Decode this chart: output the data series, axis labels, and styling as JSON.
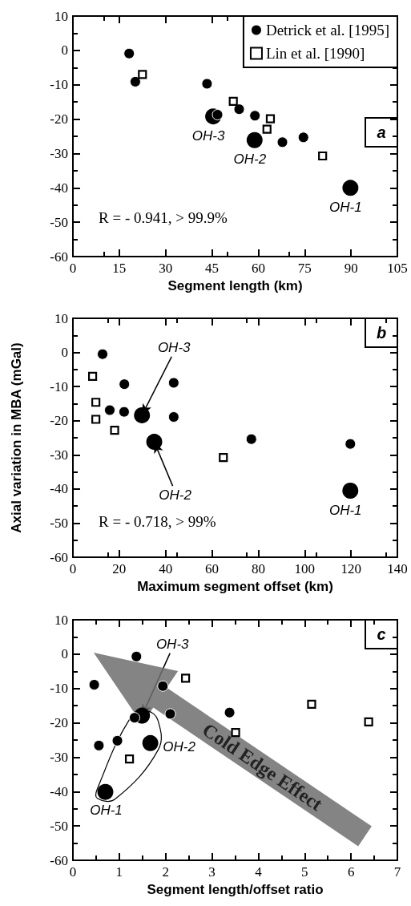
{
  "chart_data": [
    {
      "type": "scatter",
      "xlabel": "Segment length (km)",
      "xlim": [
        0,
        105
      ],
      "xticks": [
        0,
        15,
        30,
        45,
        60,
        75,
        90,
        105
      ],
      "ylim": [
        -60,
        10
      ],
      "yticks": [
        -60,
        -50,
        -40,
        -30,
        -20,
        -10,
        0,
        10
      ],
      "legend": "top right",
      "grid": false,
      "series": [
        {
          "name": "Detrick et al. [1995]",
          "color": "#000000",
          "marker": "circle",
          "x": [
            18.2,
            20.2,
            43.4,
            46.8,
            53.8,
            58.9,
            67.8,
            74.6
          ],
          "values": [
            -0.9,
            -9.1,
            -9.7,
            -18.7,
            -17.1,
            -19,
            -26.7,
            -25.3
          ]
        },
        {
          "name": "Lin et al. [1990]",
          "color": "#000000",
          "marker": "square",
          "x": [
            22.5,
            51.9,
            63.9,
            62.8,
            80.8
          ],
          "values": [
            -7,
            -14.8,
            -19.9,
            -22.9,
            -30.7
          ]
        },
        {
          "color": "#000000",
          "marker": "circle",
          "x": [
            45.4,
            58.8,
            89.8
          ],
          "values": [
            -19.2,
            -26.1,
            -40
          ]
        }
      ],
      "annotations": [
        "a",
        "R = - 0.941, > 99.9%",
        {
          "text": "OH-3",
          "x": 45.4,
          "y": -19.2
        },
        {
          "text": "OH-2",
          "x": 58.8,
          "y": -26.1
        },
        {
          "text": "OH-1",
          "x": 89.8,
          "y": -40
        }
      ]
    },
    {
      "type": "scatter",
      "xlabel": "Maximum segment offset (km)",
      "ylabel": "Axial variation in MBA (mGal)",
      "xlim": [
        0,
        140
      ],
      "xticks": [
        0,
        20,
        40,
        60,
        80,
        100,
        120,
        140
      ],
      "ylim": [
        -60,
        10
      ],
      "yticks": [
        -60,
        -50,
        -40,
        -30,
        -20,
        -10,
        0,
        10
      ],
      "grid": false,
      "series": [
        {
          "color": "#000000",
          "marker": "circle",
          "x": [
            12.8,
            22.2,
            43.5,
            15.9,
            22.1,
            43.5,
            77,
            119.7
          ],
          "values": [
            -0.5,
            -9.3,
            -8.9,
            -16.9,
            -17.4,
            -18.9,
            -25.4,
            -26.8
          ]
        },
        {
          "color": "#000000",
          "marker": "square",
          "x": [
            8.5,
            9.9,
            9.9,
            18,
            64.9
          ],
          "values": [
            -7,
            -14.6,
            -19.6,
            -22.8,
            -30.8
          ]
        },
        {
          "color": "#000000",
          "marker": "circle",
          "x": [
            29.8,
            35.1,
            119.7
          ],
          "values": [
            -18.4,
            -26.2,
            -40.5
          ]
        }
      ],
      "annotations": [
        "b",
        "R = - 0.718, > 99%",
        {
          "text": "OH-3",
          "x": 29.8,
          "y": -18.4
        },
        {
          "text": "OH-2",
          "x": 35.1,
          "y": -26.2
        },
        {
          "text": "OH-1",
          "x": 119.7,
          "y": -40.5
        }
      ]
    },
    {
      "type": "scatter",
      "xlabel": "Segment length/offset ratio",
      "xlim": [
        0,
        7
      ],
      "xticks": [
        0,
        1,
        2,
        3,
        4,
        5,
        6,
        7
      ],
      "ylim": [
        -60,
        10
      ],
      "yticks": [
        -60,
        -50,
        -40,
        -30,
        -20,
        -10,
        0,
        10
      ],
      "grid": false,
      "series": [
        {
          "color": "#000000",
          "marker": "circle",
          "x": [
            1.37,
            0.46,
            1.94,
            2.1,
            3.38,
            0.56,
            0.96,
            1.33
          ],
          "values": [
            -0.7,
            -8.9,
            -9.3,
            -17.4,
            -17,
            -26.6,
            -25.2,
            -18.5
          ]
        },
        {
          "color": "#000000",
          "marker": "square",
          "x": [
            2.43,
            3.51,
            1.22,
            5.15,
            6.38
          ],
          "values": [
            -7,
            -22.8,
            -30.5,
            -14.6,
            -19.7
          ]
        },
        {
          "color": "#000000",
          "marker": "circle",
          "x": [
            1.49,
            1.67,
            0.7
          ],
          "values": [
            -17.9,
            -25.9,
            -40.1
          ]
        }
      ],
      "annotations": [
        "c",
        "Cold Edge Effect",
        {
          "text": "OH-3",
          "x": 1.49,
          "y": -17.9
        },
        {
          "text": "OH-2",
          "x": 1.67,
          "y": -25.9
        },
        {
          "text": "OH-1",
          "x": 0.7,
          "y": -40.1
        }
      ]
    }
  ]
}
